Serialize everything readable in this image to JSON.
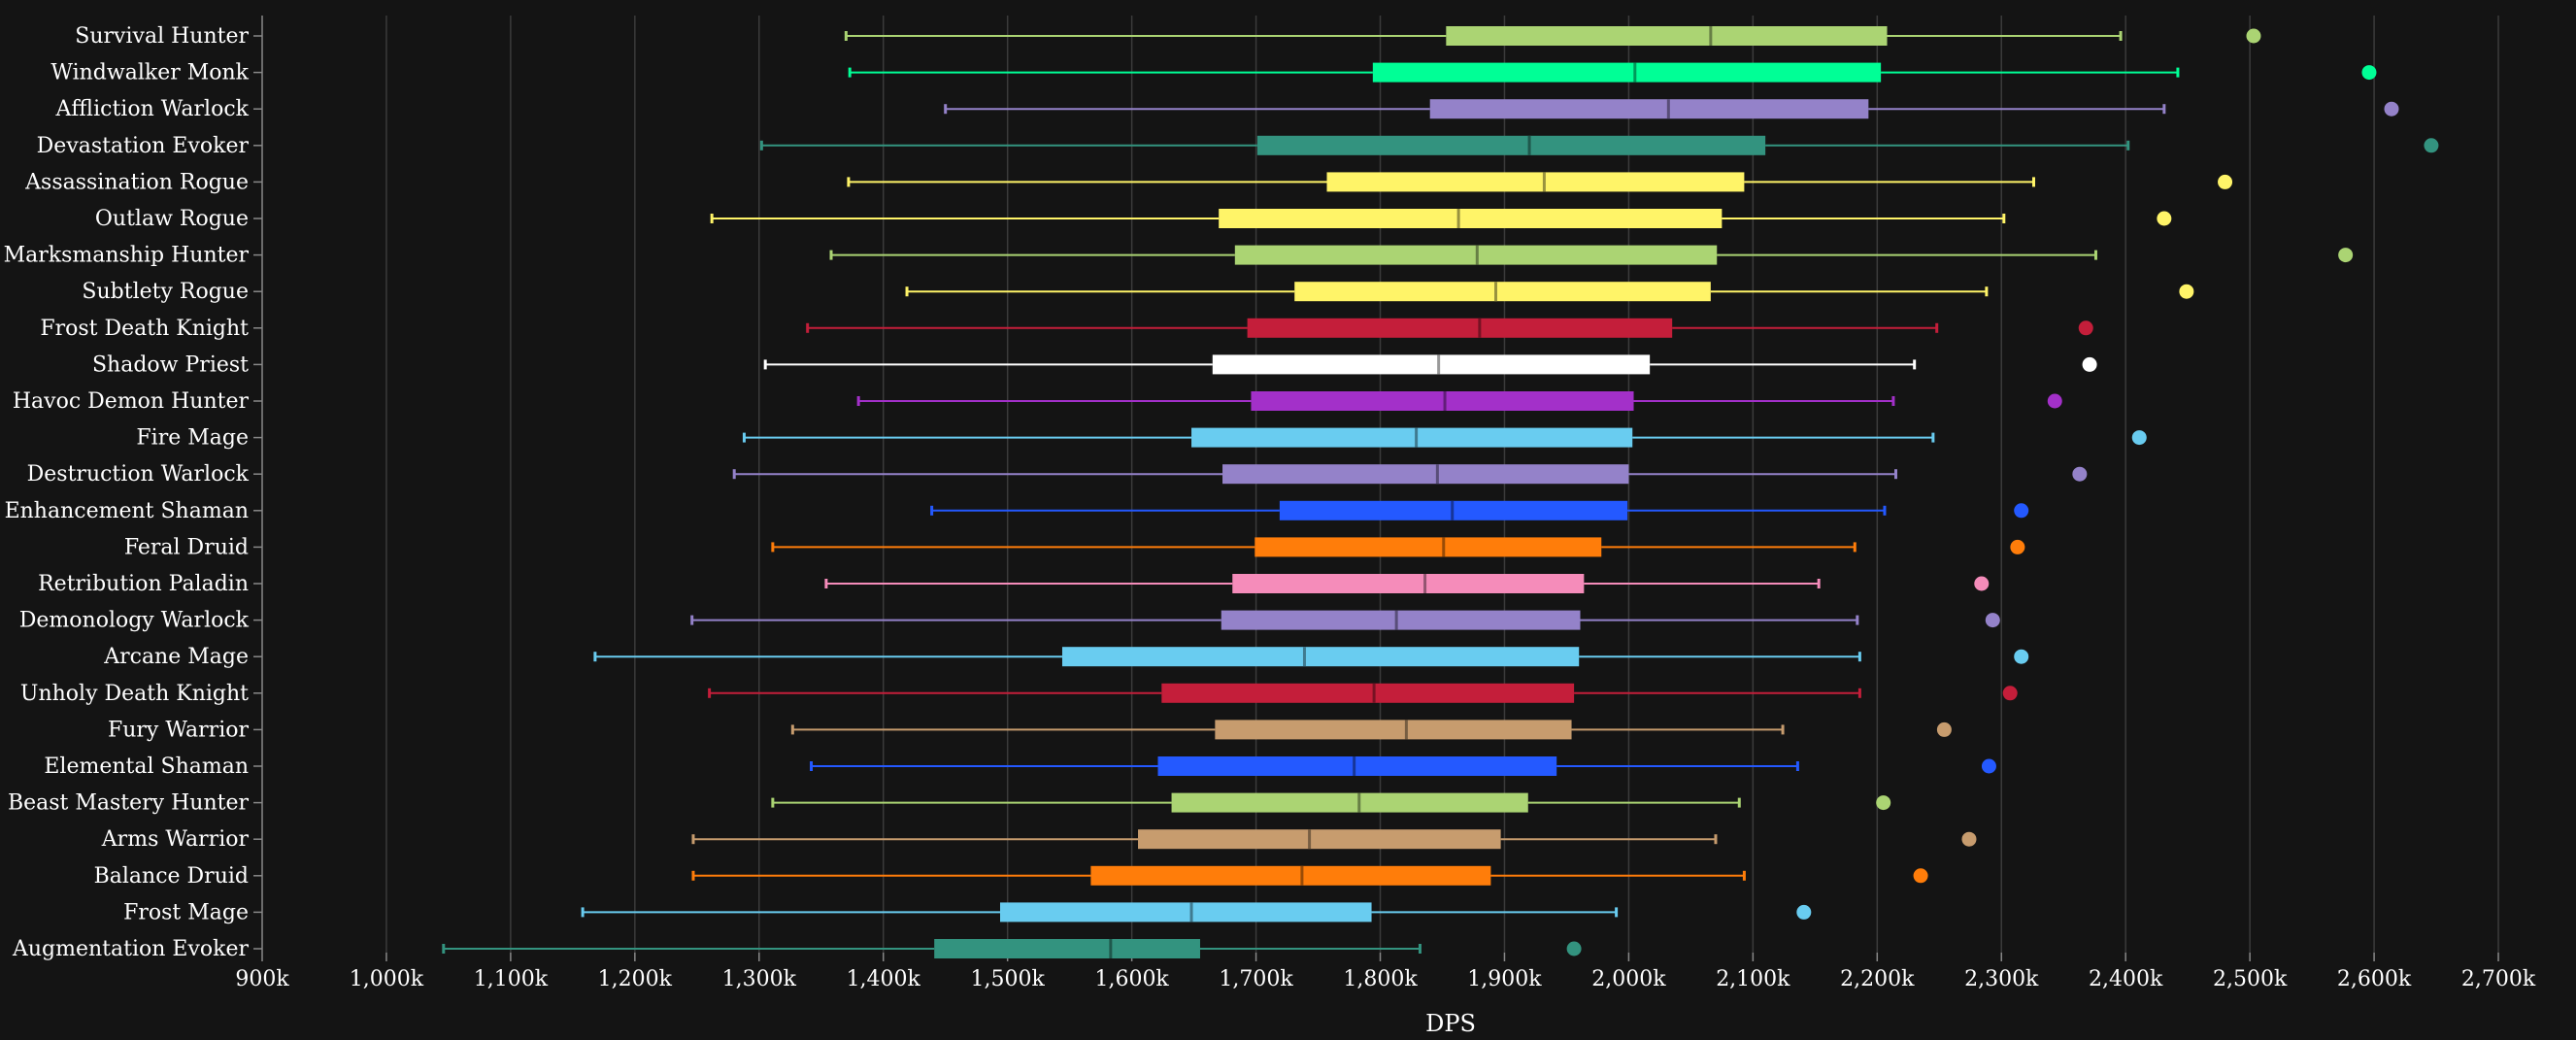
{
  "chart_data": {
    "type": "boxplot",
    "title": "",
    "xlabel": "DPS",
    "ylabel": "",
    "xlim": [
      900000,
      2750000
    ],
    "x_ticks": [
      900000,
      1000000,
      1100000,
      1200000,
      1300000,
      1400000,
      1500000,
      1600000,
      1700000,
      1800000,
      1900000,
      2000000,
      2100000,
      2200000,
      2300000,
      2400000,
      2500000,
      2600000,
      2700000
    ],
    "x_tick_labels": [
      "900k",
      "1,000k",
      "1,100k",
      "1,200k",
      "1,300k",
      "1,400k",
      "1,500k",
      "1,600k",
      "1,700k",
      "1,800k",
      "1,900k",
      "2,000k",
      "2,100k",
      "2,200k",
      "2,300k",
      "2,400k",
      "2,500k",
      "2,600k",
      "2,700k"
    ],
    "grid": "vertical",
    "legend": "none",
    "series": [
      {
        "name": "Survival Hunter",
        "color": "#abd473",
        "min": 1370000,
        "q1": 1853000,
        "median": 2066000,
        "q3": 2208000,
        "max": 2396000,
        "outlier": 2503000
      },
      {
        "name": "Windwalker Monk",
        "color": "#00ff96",
        "min": 1373000,
        "q1": 1794000,
        "median": 2005000,
        "q3": 2203000,
        "max": 2442000,
        "outlier": 2596000
      },
      {
        "name": "Affliction Warlock",
        "color": "#9482c9",
        "min": 1450000,
        "q1": 1840000,
        "median": 2032000,
        "q3": 2193000,
        "max": 2431000,
        "outlier": 2614000
      },
      {
        "name": "Devastation Evoker",
        "color": "#33937f",
        "min": 1302000,
        "q1": 1701000,
        "median": 1920000,
        "q3": 2110000,
        "max": 2402000,
        "outlier": 2646000
      },
      {
        "name": "Assassination Rogue",
        "color": "#fff468",
        "min": 1372000,
        "q1": 1757000,
        "median": 1932000,
        "q3": 2093000,
        "max": 2326000,
        "outlier": 2480000
      },
      {
        "name": "Outlaw Rogue",
        "color": "#fff468",
        "min": 1262000,
        "q1": 1670000,
        "median": 1863000,
        "q3": 2075000,
        "max": 2302000,
        "outlier": 2431000
      },
      {
        "name": "Marksmanship Hunter",
        "color": "#abd473",
        "min": 1358000,
        "q1": 1683000,
        "median": 1878000,
        "q3": 2071000,
        "max": 2376000,
        "outlier": 2577000
      },
      {
        "name": "Subtlety Rogue",
        "color": "#fff468",
        "min": 1419000,
        "q1": 1731000,
        "median": 1893000,
        "q3": 2066000,
        "max": 2288000,
        "outlier": 2449000
      },
      {
        "name": "Frost Death Knight",
        "color": "#c41e3a",
        "min": 1339000,
        "q1": 1693000,
        "median": 1880000,
        "q3": 2035000,
        "max": 2248000,
        "outlier": 2368000
      },
      {
        "name": "Shadow Priest",
        "color": "#ffffff",
        "min": 1305000,
        "q1": 1665000,
        "median": 1847000,
        "q3": 2017000,
        "max": 2230000,
        "outlier": 2371000
      },
      {
        "name": "Havoc Demon Hunter",
        "color": "#a330c9",
        "min": 1380000,
        "q1": 1696000,
        "median": 1852000,
        "q3": 2004000,
        "max": 2213000,
        "outlier": 2343000
      },
      {
        "name": "Fire Mage",
        "color": "#69ccf0",
        "min": 1288000,
        "q1": 1648000,
        "median": 1829000,
        "q3": 2003000,
        "max": 2245000,
        "outlier": 2411000
      },
      {
        "name": "Destruction Warlock",
        "color": "#9482c9",
        "min": 1280000,
        "q1": 1673000,
        "median": 1846000,
        "q3": 2000000,
        "max": 2215000,
        "outlier": 2363000
      },
      {
        "name": "Enhancement Shaman",
        "color": "#2459ff",
        "min": 1439000,
        "q1": 1719000,
        "median": 1858000,
        "q3": 1999000,
        "max": 2206000,
        "outlier": 2316000
      },
      {
        "name": "Feral Druid",
        "color": "#ff7d0a",
        "min": 1311000,
        "q1": 1699000,
        "median": 1851000,
        "q3": 1978000,
        "max": 2182000,
        "outlier": 2313000
      },
      {
        "name": "Retribution Paladin",
        "color": "#f58cba",
        "min": 1354000,
        "q1": 1681000,
        "median": 1836000,
        "q3": 1964000,
        "max": 2153000,
        "outlier": 2284000
      },
      {
        "name": "Demonology Warlock",
        "color": "#9482c9",
        "min": 1246000,
        "q1": 1672000,
        "median": 1813000,
        "q3": 1961000,
        "max": 2184000,
        "outlier": 2293000
      },
      {
        "name": "Arcane Mage",
        "color": "#69ccf0",
        "min": 1168000,
        "q1": 1544000,
        "median": 1739000,
        "q3": 1960000,
        "max": 2186000,
        "outlier": 2316000
      },
      {
        "name": "Unholy Death Knight",
        "color": "#c41e3a",
        "min": 1260000,
        "q1": 1624000,
        "median": 1795000,
        "q3": 1956000,
        "max": 2186000,
        "outlier": 2307000
      },
      {
        "name": "Fury Warrior",
        "color": "#c79c6e",
        "min": 1327000,
        "q1": 1667000,
        "median": 1821000,
        "q3": 1954000,
        "max": 2124000,
        "outlier": 2254000
      },
      {
        "name": "Elemental Shaman",
        "color": "#2459ff",
        "min": 1342000,
        "q1": 1621000,
        "median": 1779000,
        "q3": 1942000,
        "max": 2136000,
        "outlier": 2290000
      },
      {
        "name": "Beast Mastery Hunter",
        "color": "#abd473",
        "min": 1311000,
        "q1": 1632000,
        "median": 1783000,
        "q3": 1919000,
        "max": 2089000,
        "outlier": 2205000
      },
      {
        "name": "Arms Warrior",
        "color": "#c79c6e",
        "min": 1247000,
        "q1": 1605000,
        "median": 1743000,
        "q3": 1897000,
        "max": 2070000,
        "outlier": 2274000
      },
      {
        "name": "Balance Druid",
        "color": "#ff7d0a",
        "min": 1247000,
        "q1": 1567000,
        "median": 1737000,
        "q3": 1889000,
        "max": 2093000,
        "outlier": 2235000
      },
      {
        "name": "Frost Mage",
        "color": "#69ccf0",
        "min": 1158000,
        "q1": 1494000,
        "median": 1648000,
        "q3": 1793000,
        "max": 1990000,
        "outlier": 2141000
      },
      {
        "name": "Augmentation Evoker",
        "color": "#33937f",
        "min": 1046000,
        "q1": 1441000,
        "median": 1583000,
        "q3": 1655000,
        "max": 1832000,
        "outlier": 1956000
      }
    ]
  }
}
